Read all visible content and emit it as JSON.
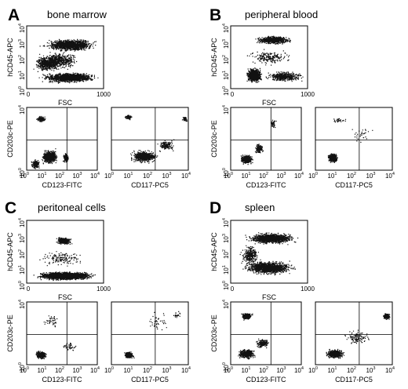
{
  "panels": [
    {
      "letter": "A",
      "title": "bone marrow",
      "top_y": "hCD45-APC",
      "top_x": "FSC",
      "top_y_ticks": [
        "10",
        "10",
        "10",
        "10",
        "10"
      ],
      "top_y_exp": [
        "0",
        "1",
        "2",
        "3",
        "4"
      ],
      "top_x_ticks": [
        "0",
        "1000"
      ],
      "bottom_y": "CD203c-PE",
      "bl_x": "CD123-FITC",
      "br_x": "CD117-PC5",
      "log_ticks": [
        "10",
        "10",
        "10",
        "10",
        "10"
      ],
      "log_exp": [
        "0",
        "1",
        "2",
        "3",
        "4"
      ]
    },
    {
      "letter": "B",
      "title": "peripheral blood",
      "top_y": "hCD45-APC",
      "top_x": "FSC",
      "top_y_ticks": [
        "10",
        "10",
        "10",
        "10",
        "10"
      ],
      "top_y_exp": [
        "0",
        "1",
        "2",
        "3",
        "4"
      ],
      "top_x_ticks": [
        "0",
        "1000"
      ],
      "bottom_y": "CD203c-PE",
      "bl_x": "CD123-FITC",
      "br_x": "CD117-PC5",
      "log_ticks": [
        "10",
        "10",
        "10",
        "10",
        "10"
      ],
      "log_exp": [
        "0",
        "1",
        "2",
        "3",
        "4"
      ]
    },
    {
      "letter": "C",
      "title": "peritoneal cells",
      "top_y": "hCD45-APC",
      "top_x": "FSC",
      "top_y_ticks": [
        "10",
        "10",
        "10",
        "10",
        "10"
      ],
      "top_y_exp": [
        "0",
        "1",
        "2",
        "3",
        "4"
      ],
      "top_x_ticks": [
        "0",
        "1000"
      ],
      "bottom_y": "CD203c-PE",
      "bl_x": "CD123-FITC",
      "br_x": "CD117-PC5",
      "log_ticks": [
        "10",
        "10",
        "10",
        "10",
        "10"
      ],
      "log_exp": [
        "0",
        "1",
        "2",
        "3",
        "4"
      ]
    },
    {
      "letter": "D",
      "title": "spleen",
      "top_y": "hCD45-APC",
      "top_x": "FSC",
      "top_y_ticks": [
        "10",
        "10",
        "10",
        "10",
        "10"
      ],
      "top_y_exp": [
        "0",
        "1",
        "2",
        "3",
        "4"
      ],
      "top_x_ticks": [
        "0",
        "1000"
      ],
      "bottom_y": "CD203c-PE",
      "bl_x": "CD123-FITC",
      "br_x": "CD117-PC5",
      "log_ticks": [
        "10",
        "10",
        "10",
        "10",
        "10"
      ],
      "log_exp": [
        "0",
        "1",
        "2",
        "3",
        "4"
      ]
    }
  ]
}
